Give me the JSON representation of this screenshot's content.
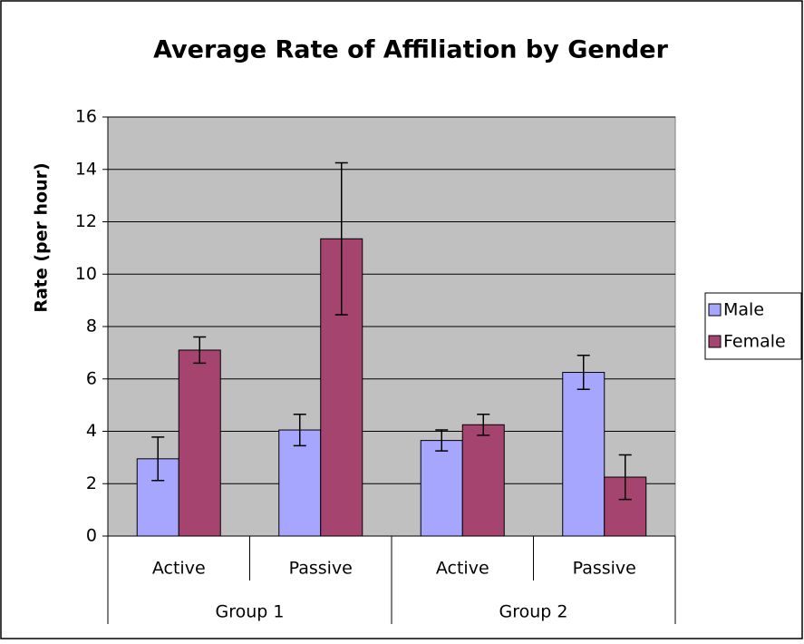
{
  "chart_data": {
    "type": "bar",
    "title": "Average Rate of Affiliation by Gender",
    "ylabel": "Rate (per hour)",
    "categories": [
      "Active",
      "Passive",
      "Active",
      "Passive"
    ],
    "groups": [
      "Group 1",
      "Group 2"
    ],
    "series": [
      {
        "name": "Male",
        "color": "#a6a6ff",
        "values": [
          2.95,
          4.05,
          3.65,
          6.25
        ],
        "errors": [
          0.83,
          0.6,
          0.4,
          0.65
        ]
      },
      {
        "name": "Female",
        "color": "#a5456f",
        "values": [
          7.1,
          11.35,
          4.25,
          2.25
        ],
        "errors": [
          0.5,
          2.9,
          0.4,
          0.85
        ]
      }
    ],
    "ylim": [
      0,
      16
    ],
    "yticks": [
      0,
      2,
      4,
      6,
      8,
      10,
      12,
      14,
      16
    ],
    "grid": true,
    "legend": "right"
  }
}
